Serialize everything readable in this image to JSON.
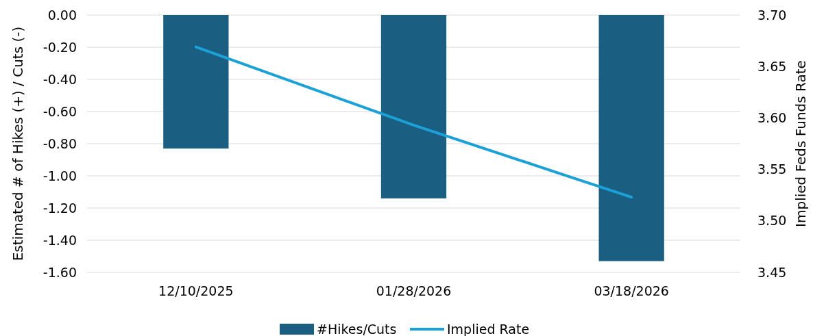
{
  "chart_data": {
    "type": "bar",
    "categories": [
      "12/10/2025",
      "01/28/2026",
      "03/18/2026"
    ],
    "series": [
      {
        "name": "#Hikes/Cuts",
        "color": "#1a5f82",
        "values": [
          -0.83,
          -1.14,
          -1.53
        ]
      },
      {
        "name": "Implied Rate",
        "type": "line",
        "axis": "y2",
        "color": "#1ba1d8",
        "values": [
          3.669,
          3.593,
          3.523
        ]
      }
    ],
    "ylabel": "Estimated # of Hikes (+) / Cuts (-)",
    "y2label": "Implied Feds Funds Rate",
    "ylim": [
      -1.6,
      0
    ],
    "yticks": [
      {
        "value": 0,
        "label": "0.00"
      },
      {
        "value": -0.2,
        "label": "-0.20"
      },
      {
        "value": -0.4,
        "label": "-0.40"
      },
      {
        "value": -0.6,
        "label": "-0.60"
      },
      {
        "value": -0.8,
        "label": "-0.80"
      },
      {
        "value": -1.0,
        "label": "-1.00"
      },
      {
        "value": -1.2,
        "label": "-1.20"
      },
      {
        "value": -1.4,
        "label": "-1.40"
      },
      {
        "value": -1.6,
        "label": "-1.60"
      }
    ],
    "y2lim": [
      3.45,
      3.7
    ],
    "y2ticks": [
      {
        "value": 3.45,
        "label": "3.45"
      },
      {
        "value": 3.5,
        "label": "3.50"
      },
      {
        "value": 3.55,
        "label": "3.55"
      },
      {
        "value": 3.6,
        "label": "3.60"
      },
      {
        "value": 3.65,
        "label": "3.65"
      },
      {
        "value": 3.7,
        "label": "3.70"
      }
    ],
    "grid": "y",
    "legend": "bottom"
  }
}
